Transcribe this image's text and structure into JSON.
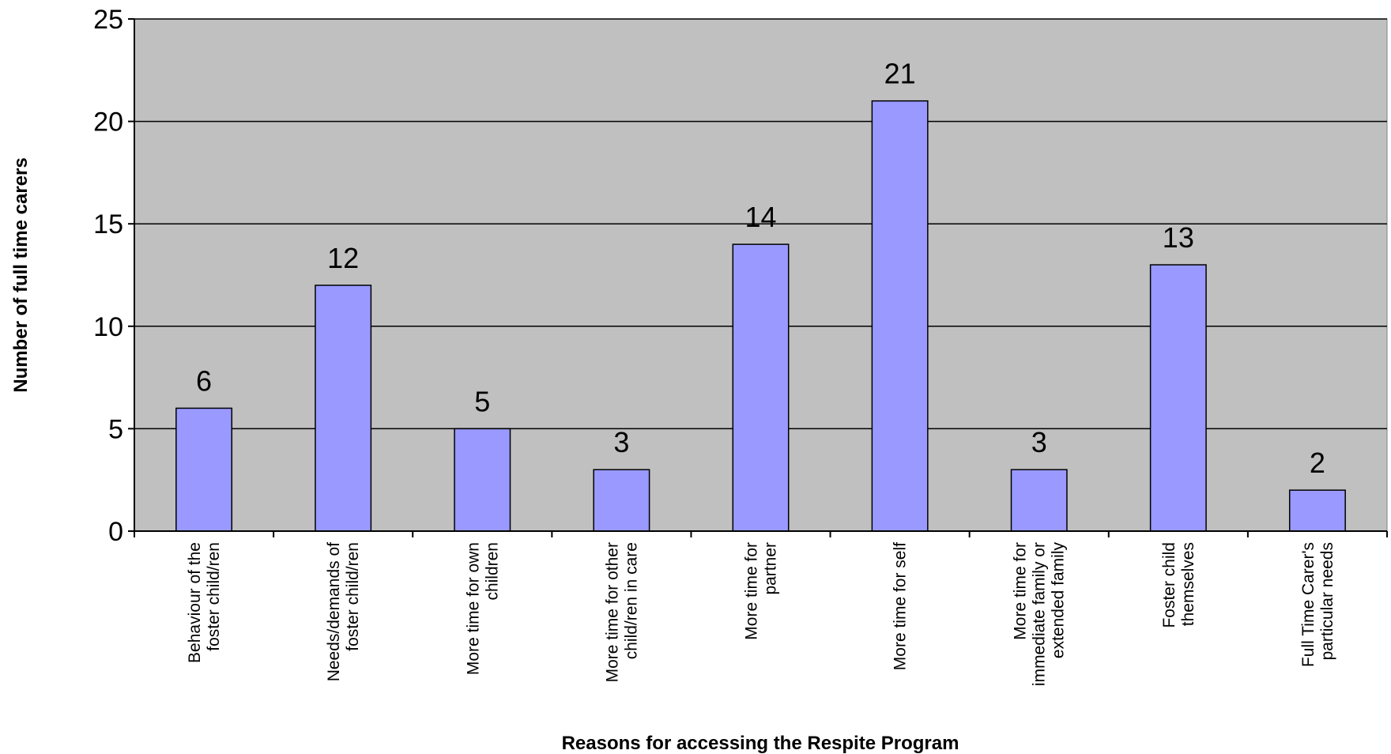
{
  "chart_data": {
    "type": "bar",
    "title": "",
    "xlabel": "Reasons for accessing the Respite Program",
    "ylabel": "Number of full time carers",
    "ylim": [
      0,
      25
    ],
    "yticks": [
      0,
      5,
      10,
      15,
      20,
      25
    ],
    "grid": true,
    "legend": "none",
    "categories": [
      [
        "Behaviour of the",
        "foster child/ren"
      ],
      [
        "Needs/demands of",
        "foster child/ren"
      ],
      [
        "More time for own",
        "children"
      ],
      [
        "More time for other",
        "child/ren in care"
      ],
      [
        "More time for",
        "partner"
      ],
      [
        "More time for self"
      ],
      [
        "More time for",
        "immediate family or",
        "extended family"
      ],
      [
        "Foster child",
        "themselves"
      ],
      [
        "Full Time Carer's",
        "particular needs"
      ]
    ],
    "values": [
      6,
      12,
      5,
      3,
      14,
      21,
      3,
      13,
      2
    ],
    "colors": {
      "bar": "#9999ff",
      "plot_background": "#c0c0c0",
      "gridline": "#000000"
    }
  }
}
